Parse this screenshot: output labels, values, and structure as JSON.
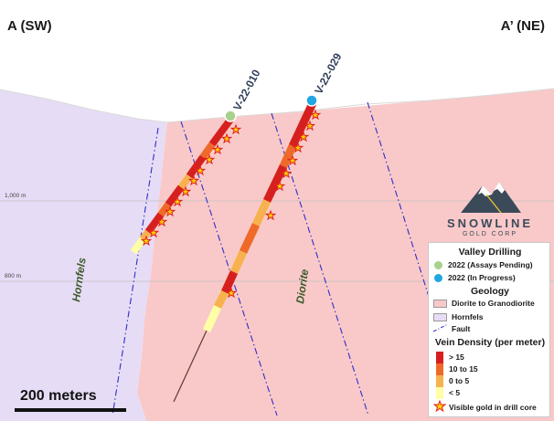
{
  "section": {
    "left_label": "A (SW)",
    "right_label": "A’ (NE)",
    "elevation_labels": [
      "1,000 m",
      "800 m"
    ],
    "rock_labels": {
      "hornfels": "Hornfels",
      "diorite": "Diorite"
    },
    "scale_bar_label": "200 meters"
  },
  "drillholes": [
    {
      "name": "V-22-010",
      "collar_color": "#a9d18e",
      "status": "2022 (Assays Pending)"
    },
    {
      "name": "V-22-029",
      "collar_color": "#1ea7e1",
      "status": "2022 (In Progress)"
    }
  ],
  "logo": {
    "name": "SNOWLINE",
    "subtitle": "GOLD CORP"
  },
  "legend": {
    "drilling_title": "Valley Drilling",
    "drilling_items": [
      {
        "label": "2022 (Assays Pending)",
        "color": "#a9d18e"
      },
      {
        "label": "2022 (In Progress)",
        "color": "#1ea7e1"
      }
    ],
    "geology_title": "Geology",
    "geology_items": [
      {
        "label": "Diorite to Granodiorite",
        "color": "#f9c9c9"
      },
      {
        "label": "Hornfels",
        "color": "#e7dcf5"
      },
      {
        "label": "Fault",
        "color": "#2e2ec8"
      }
    ],
    "vein_title": "Vein Density (per meter)",
    "vein_items": [
      {
        "label": "> 15",
        "color": "#d62020"
      },
      {
        "label": "10 to 15",
        "color": "#ef6a2a"
      },
      {
        "label": "0 to 5",
        "color": "#f7b24f"
      },
      {
        "label": "< 5",
        "color": "#ffffa6"
      }
    ],
    "gold_label": "Visible gold in drill core"
  },
  "colors": {
    "diorite": "#f9c9c9",
    "hornfels": "#e7dcf5",
    "fault": "#2e2ec8",
    "vein_high": "#d62020",
    "vein_mid": "#ef6a2a",
    "vein_low": "#f7b24f",
    "vein_min": "#ffffa6",
    "gold_star": "#ffd200",
    "gold_outline": "#e0201a"
  }
}
